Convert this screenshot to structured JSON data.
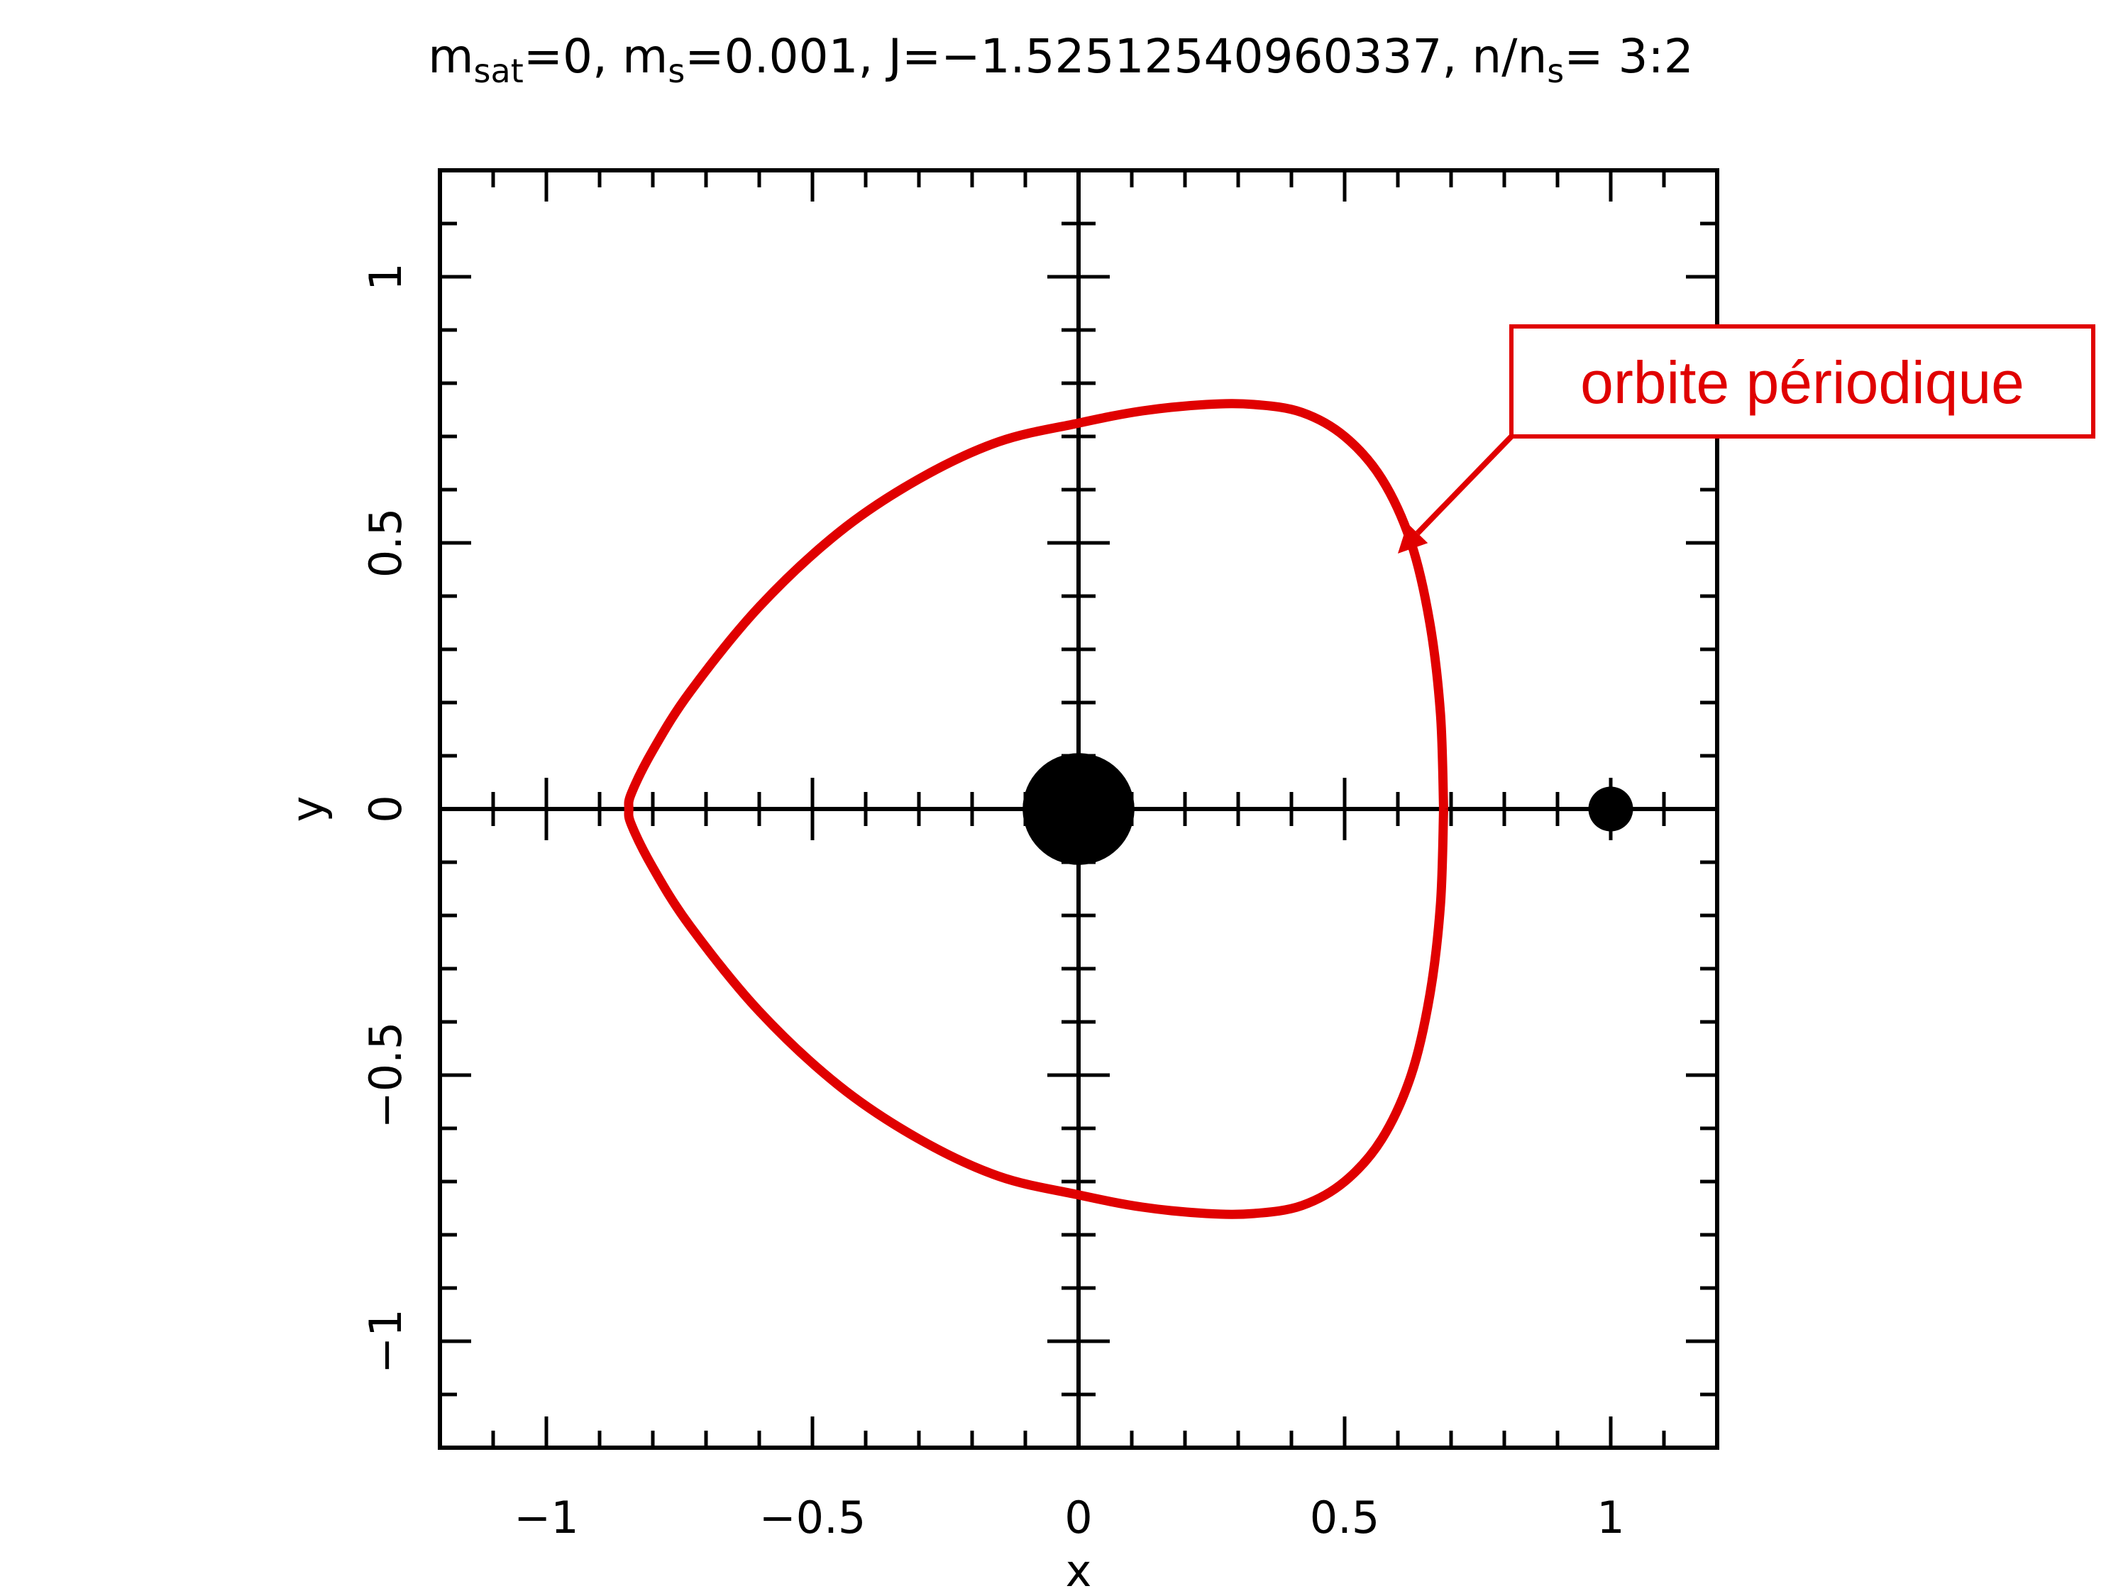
{
  "chart_data": {
    "type": "line",
    "title": {
      "m_sat_label": "m",
      "m_sat_sub": "sat",
      "m_sat_value": "=0, ",
      "m_s_label": "m",
      "m_s_sub": "s",
      "m_s_value": "=0.001, ",
      "J_text": "J=−1.52512540960337, ",
      "ratio_label": "n/n",
      "ratio_sub": "s",
      "ratio_value": "= 3:2"
    },
    "xlabel": "x",
    "ylabel": "y",
    "xlim": [
      -1.2,
      1.2
    ],
    "ylim": [
      -1.2,
      1.2
    ],
    "x_ticks": [
      {
        "value": -1,
        "label": "−1"
      },
      {
        "value": -0.5,
        "label": "−0.5"
      },
      {
        "value": 0,
        "label": "0"
      },
      {
        "value": 0.5,
        "label": "0.5"
      },
      {
        "value": 1,
        "label": "1"
      }
    ],
    "y_ticks": [
      {
        "value": -1,
        "label": "−1"
      },
      {
        "value": -0.5,
        "label": "−0.5"
      },
      {
        "value": 0,
        "label": "0"
      },
      {
        "value": 0.5,
        "label": "0.5"
      },
      {
        "value": 1,
        "label": "1"
      }
    ],
    "minor_tick_step": 0.1,
    "grid": false,
    "cross_axes_through_origin": true,
    "bodies": [
      {
        "name": "primary",
        "x": 0,
        "y": 0,
        "radius_data": 0.105,
        "color": "#000000"
      },
      {
        "name": "perturber",
        "x": 1,
        "y": 0,
        "radius_data": 0.042,
        "color": "#000000"
      }
    ],
    "series": [
      {
        "color": "#e00000",
        "x": [
          0.686,
          0.68,
          0.66,
          0.625,
          0.57,
          0.5,
          0.42,
          0.33,
          0.24,
          0.12,
          0.0,
          -0.15,
          -0.3,
          -0.45,
          -0.6,
          -0.73,
          -0.8,
          -0.84,
          -0.845,
          -0.84,
          -0.8,
          -0.73,
          -0.6,
          -0.45,
          -0.3,
          -0.15,
          0.0,
          0.12,
          0.24,
          0.33,
          0.42,
          0.5,
          0.57,
          0.625,
          0.66,
          0.68,
          0.686
        ],
        "y": [
          0.0,
          0.18,
          0.35,
          0.5,
          0.62,
          0.7,
          0.745,
          0.76,
          0.76,
          0.748,
          0.725,
          0.69,
          0.62,
          0.52,
          0.38,
          0.22,
          0.11,
          0.03,
          0.0,
          -0.03,
          -0.11,
          -0.22,
          -0.38,
          -0.52,
          -0.62,
          -0.69,
          -0.725,
          -0.748,
          -0.76,
          -0.76,
          -0.745,
          -0.7,
          -0.62,
          -0.5,
          -0.35,
          -0.18,
          0.0
        ]
      }
    ],
    "annotation": {
      "text": "orbite périodique",
      "color": "#e00000",
      "arrow_target": {
        "x": 0.6,
        "y": 0.48
      }
    }
  }
}
